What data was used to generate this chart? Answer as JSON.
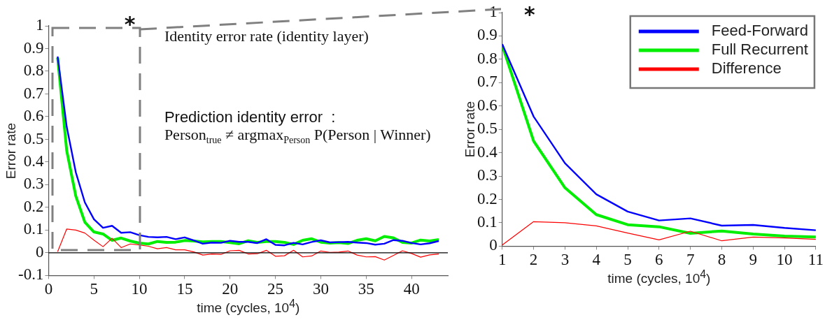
{
  "chart_data": [
    {
      "type": "line",
      "xlabel": "time (cycles, 10$^{4}$)",
      "ylabel": "Error rate",
      "xlim": [
        0,
        44
      ],
      "xticks": [
        0,
        5,
        10,
        15,
        20,
        25,
        30,
        35,
        40
      ],
      "ylim": [
        -0.1,
        1
      ],
      "yticks": [
        -0.1,
        0,
        0.1,
        0.2,
        0.3,
        0.4,
        0.5,
        0.6,
        0.7,
        0.8,
        0.9,
        1
      ],
      "grid": false,
      "legend": false,
      "marker": "none",
      "line_style": "solid",
      "annotations": [
        "*",
        "Identity error rate (identity layer)",
        "Prediction identity error  :",
        "Person$_{true}$ ≠ argmax$_{Person}$ P(Person | Winner)"
      ],
      "ref_lines": [
        {
          "axis": "y",
          "value": 0,
          "color": "#000000"
        }
      ],
      "x": [
        1,
        2,
        3,
        4,
        5,
        6,
        7,
        8,
        9,
        10,
        11,
        12,
        13,
        14,
        15,
        16,
        17,
        18,
        19,
        20,
        21,
        22,
        23,
        24,
        25,
        26,
        27,
        28,
        29,
        30,
        31,
        32,
        33,
        34,
        35,
        36,
        37,
        38,
        39,
        40,
        41,
        42,
        43
      ],
      "series": [
        {
          "color": "#0000ff",
          "values": [
            0.865,
            0.555,
            0.355,
            0.222,
            0.148,
            0.11,
            0.119,
            0.088,
            0.091,
            0.078,
            0.07,
            0.068,
            0.07,
            0.06,
            0.068,
            0.055,
            0.04,
            0.045,
            0.044,
            0.053,
            0.048,
            0.048,
            0.043,
            0.06,
            0.035,
            0.033,
            0.044,
            0.037,
            0.048,
            0.055,
            0.046,
            0.047,
            0.048,
            0.045,
            0.043,
            0.036,
            0.04,
            0.056,
            0.053,
            0.043,
            0.037,
            0.042,
            0.052
          ]
        },
        {
          "color": "#00ee00",
          "values": [
            0.86,
            0.45,
            0.25,
            0.135,
            0.092,
            0.083,
            0.055,
            0.065,
            0.052,
            0.043,
            0.039,
            0.05,
            0.046,
            0.047,
            0.054,
            0.052,
            0.048,
            0.05,
            0.05,
            0.045,
            0.04,
            0.053,
            0.046,
            0.05,
            0.05,
            0.046,
            0.037,
            0.055,
            0.062,
            0.047,
            0.043,
            0.045,
            0.041,
            0.055,
            0.062,
            0.053,
            0.072,
            0.066,
            0.046,
            0.043,
            0.056,
            0.052,
            0.058
          ]
        },
        {
          "color": "#ff0000",
          "values": [
            0.005,
            0.105,
            0.1,
            0.087,
            0.056,
            0.027,
            0.064,
            0.023,
            0.039,
            0.035,
            0.029,
            0.018,
            0.023,
            0.013,
            0.013,
            0.004,
            -0.01,
            -0.005,
            -0.007,
            0.009,
            0.011,
            -0.005,
            -0.004,
            0.011,
            -0.015,
            -0.013,
            0.011,
            -0.018,
            -0.014,
            0.008,
            0.002,
            0.003,
            0.008,
            -0.01,
            -0.018,
            -0.017,
            -0.032,
            -0.012,
            0.009,
            -0.003,
            -0.019,
            -0.009,
            -0.005
          ]
        }
      ]
    },
    {
      "type": "line",
      "xlabel": "time (cycles, 10$^{4}$)",
      "ylabel": "Error rate",
      "xlim": [
        1,
        11
      ],
      "xticks": [
        1,
        2,
        3,
        4,
        5,
        6,
        7,
        8,
        9,
        10,
        11
      ],
      "ylim": [
        0,
        1
      ],
      "yticks": [
        0,
        0.1,
        0.2,
        0.3,
        0.4,
        0.5,
        0.6,
        0.7,
        0.8,
        0.9,
        1
      ],
      "grid": false,
      "legend": "top right",
      "marker": "none",
      "line_style": "solid",
      "annotations": [
        "*"
      ],
      "x": [
        1,
        2,
        3,
        4,
        5,
        6,
        7,
        8,
        9,
        10,
        11
      ],
      "series": [
        {
          "name": "Feed-Forward",
          "color": "#0000ff",
          "values": [
            0.865,
            0.555,
            0.355,
            0.222,
            0.148,
            0.11,
            0.119,
            0.088,
            0.091,
            0.078,
            0.068
          ]
        },
        {
          "name": "Full Recurrent",
          "color": "#00ee00",
          "values": [
            0.86,
            0.45,
            0.25,
            0.135,
            0.092,
            0.083,
            0.055,
            0.065,
            0.052,
            0.043,
            0.039
          ]
        },
        {
          "name": "Difference",
          "color": "#ff0000",
          "values": [
            0.005,
            0.105,
            0.1,
            0.087,
            0.056,
            0.027,
            0.064,
            0.023,
            0.039,
            0.035,
            0.029
          ]
        }
      ]
    }
  ]
}
